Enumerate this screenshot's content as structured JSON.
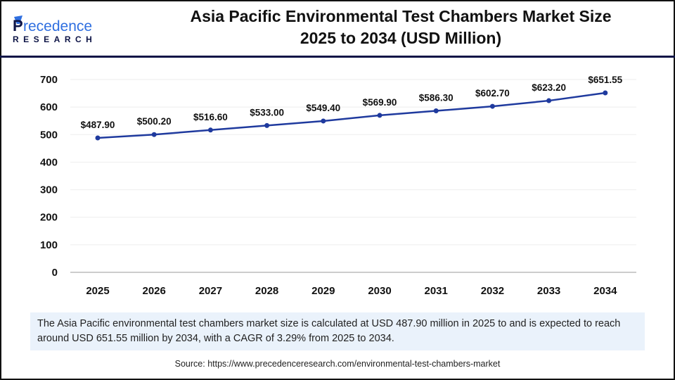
{
  "brand": {
    "logo_text": "Precedence",
    "logo_sub": "RESEARCH",
    "colors": {
      "navy": "#0d1446",
      "blue": "#2f6fe0"
    }
  },
  "title_line1": "Asia Pacific Environmental Test Chambers Market Size",
  "title_line2": "2025 to 2034 (USD Million)",
  "chart_data": {
    "type": "line",
    "categories": [
      "2025",
      "2026",
      "2027",
      "2028",
      "2029",
      "2030",
      "2031",
      "2032",
      "2033",
      "2034"
    ],
    "values": [
      487.9,
      500.2,
      516.6,
      533.0,
      549.4,
      569.9,
      586.3,
      602.7,
      623.2,
      651.55
    ],
    "data_labels": [
      "$487.90",
      "$500.20",
      "$516.60",
      "$533.00",
      "$549.40",
      "$569.90",
      "$586.30",
      "$602.70",
      "$623.20",
      "$651.55"
    ],
    "yticks": [
      0,
      100,
      200,
      300,
      400,
      500,
      600,
      700
    ],
    "ylim": [
      0,
      700
    ],
    "grid": true,
    "line_color": "#1f3a9e"
  },
  "description": "The Asia Pacific environmental test chambers market size is calculated at USD 487.90 million in 2025 to and is expected to reach around USD 651.55 million by 2034, with a CAGR of 3.29% from 2025 to 2034.",
  "source": "Source: https://www.precedenceresearch.com/environmental-test-chambers-market"
}
